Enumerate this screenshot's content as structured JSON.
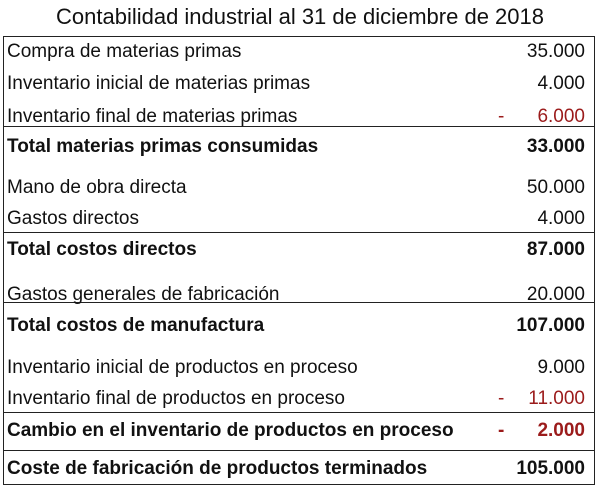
{
  "title": "Contabilidad industrial al 31 de diciembre de 2018",
  "colors": {
    "negative": "#9b1b1b",
    "text": "#111111"
  },
  "rows": [
    {
      "label": "Compra de materias primas",
      "amount": "35.000",
      "bold": false,
      "negative": false
    },
    {
      "label": "Inventario inicial de materias primas",
      "amount": "4.000",
      "bold": false,
      "negative": false
    },
    {
      "label": "Inventario final de materias primas",
      "amount": "6.000",
      "sign": "-",
      "bold": false,
      "negative": true
    },
    {
      "label": "Total materias primas consumidas",
      "amount": "33.000",
      "bold": true,
      "negative": false
    },
    {
      "label": "Mano de obra directa",
      "amount": "50.000",
      "bold": false,
      "negative": false
    },
    {
      "label": "Gastos directos",
      "amount": "4.000",
      "bold": false,
      "negative": false
    },
    {
      "label": "Total costos directos",
      "amount": "87.000",
      "bold": true,
      "negative": false
    },
    {
      "label": "Gastos generales de fabricación",
      "amount": "20.000",
      "bold": false,
      "negative": false
    },
    {
      "label": "Total costos de manufactura",
      "amount": "107.000",
      "bold": true,
      "negative": false
    },
    {
      "label": "Inventario inicial de productos en proceso",
      "amount": "9.000",
      "bold": false,
      "negative": false
    },
    {
      "label": "Inventario final de productos en proceso",
      "amount": "11.000",
      "sign": "-",
      "bold": false,
      "negative": true
    },
    {
      "label": "Cambio en el inventario de productos en proceso",
      "amount": "2.000",
      "sign": "-",
      "bold": true,
      "negative": true
    },
    {
      "label": "Coste de fabricación de productos terminados",
      "amount": "105.000",
      "bold": true,
      "negative": false
    }
  ]
}
